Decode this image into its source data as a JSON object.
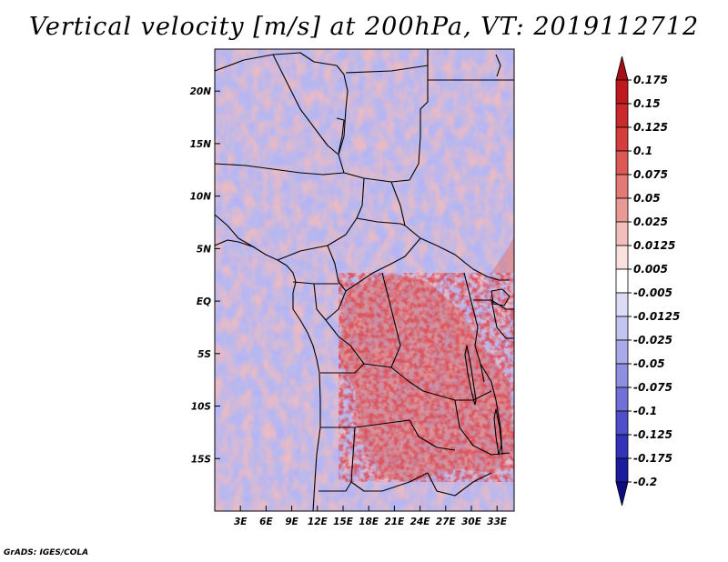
{
  "title": "Vertical velocity [m/s] at 200hPa, VT: 2019112712",
  "credit": "GrADS: IGES/COLA",
  "map": {
    "lon_range": [
      0,
      35
    ],
    "lat_range": [
      -20,
      24
    ],
    "lat_ticks": [
      {
        "v": 20,
        "label": "20N"
      },
      {
        "v": 15,
        "label": "15N"
      },
      {
        "v": 10,
        "label": "10N"
      },
      {
        "v": 5,
        "label": "5N"
      },
      {
        "v": 0,
        "label": "EQ"
      },
      {
        "v": -5,
        "label": "5S"
      },
      {
        "v": -10,
        "label": "10S"
      },
      {
        "v": -15,
        "label": "15S"
      }
    ],
    "lon_ticks": [
      {
        "v": 3,
        "label": "3E"
      },
      {
        "v": 6,
        "label": "6E"
      },
      {
        "v": 9,
        "label": "9E"
      },
      {
        "v": 12,
        "label": "12E"
      },
      {
        "v": 15,
        "label": "15E"
      },
      {
        "v": 18,
        "label": "18E"
      },
      {
        "v": 21,
        "label": "21E"
      },
      {
        "v": 24,
        "label": "24E"
      },
      {
        "v": 27,
        "label": "27E"
      },
      {
        "v": 30,
        "label": "30E"
      },
      {
        "v": 33,
        "label": "33E"
      }
    ]
  },
  "colorbar": {
    "levels": [
      "0.175",
      "0.15",
      "0.125",
      "0.1",
      "0.075",
      "0.05",
      "0.025",
      "0.0125",
      "0.005",
      "-0.005",
      "-0.0125",
      "-0.025",
      "-0.05",
      "-0.075",
      "-0.1",
      "-0.125",
      "-0.175",
      "-0.2"
    ],
    "colors": [
      "#a50f15",
      "#c0181f",
      "#cb2a2d",
      "#d43d3c",
      "#dc5955",
      "#e37a76",
      "#ea9a96",
      "#f2c0bc",
      "#fae1de",
      "#ffffff",
      "#dcdcf6",
      "#c4c4f0",
      "#aaaaea",
      "#8f8fe2",
      "#7070d8",
      "#4f4fcc",
      "#3232bb",
      "#1c1c9e",
      "#0d0d80"
    ]
  },
  "colors": {
    "coast": "#000000",
    "ocean_bg": "#ffffff"
  }
}
